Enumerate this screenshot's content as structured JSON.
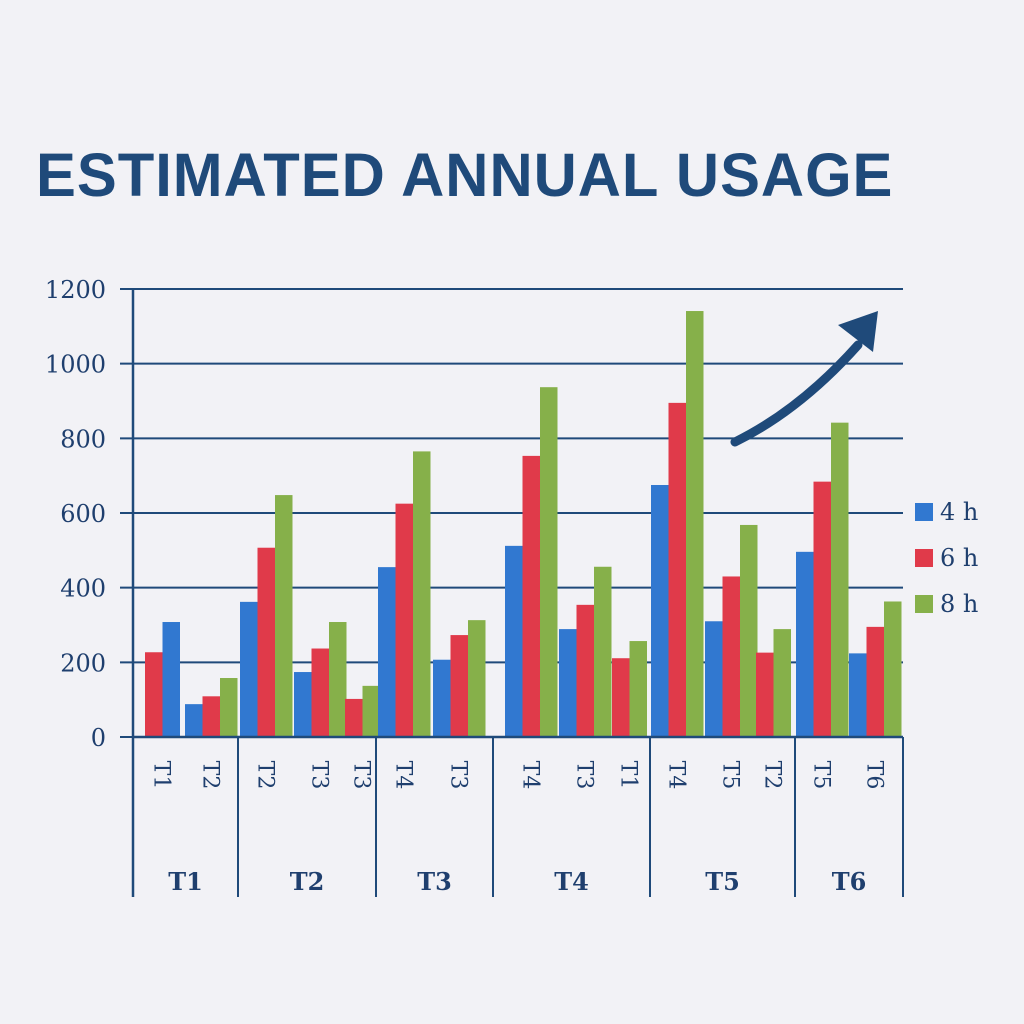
{
  "chart_data": {
    "type": "bar",
    "title": "ESTIMATED ANNUAL USAGE",
    "ylim": [
      0,
      1200
    ],
    "yticks": [
      0,
      200,
      400,
      600,
      800,
      1000,
      1200
    ],
    "grid": true,
    "legend_placement": "right",
    "colors": {
      "4 h": "#3178d0",
      "6 h": "#e03a4a",
      "8 h": "#86b04a",
      "axis": "#1f4a7a"
    },
    "series_names": [
      "4 h",
      "6 h",
      "8 h"
    ],
    "trend_arrow": "up-right",
    "groups": [
      {
        "label": "T1",
        "subgroups": [
          {
            "label": "T1",
            "bars": [
              {
                "series": "6 h",
                "value": 227
              },
              {
                "series": "4 h",
                "value": 308
              }
            ]
          },
          {
            "label": "T2",
            "bars": [
              {
                "series": "4 h",
                "value": 88
              },
              {
                "series": "6 h",
                "value": 109
              },
              {
                "series": "8 h",
                "value": 158
              }
            ]
          }
        ]
      },
      {
        "label": "T2",
        "subgroups": [
          {
            "label": "T2",
            "bars": [
              {
                "series": "4 h",
                "value": 362
              },
              {
                "series": "6 h",
                "value": 507
              },
              {
                "series": "8 h",
                "value": 648
              }
            ]
          },
          {
            "label": "T3",
            "bars": [
              {
                "series": "4 h",
                "value": 174
              },
              {
                "series": "6 h",
                "value": 237
              },
              {
                "series": "8 h",
                "value": 308
              }
            ]
          },
          {
            "label": "T3",
            "bars": [
              {
                "series": "6 h",
                "value": 102
              },
              {
                "series": "8 h",
                "value": 137
              }
            ]
          }
        ]
      },
      {
        "label": "T3",
        "subgroups": [
          {
            "label": "T4",
            "bars": [
              {
                "series": "4 h",
                "value": 455
              },
              {
                "series": "6 h",
                "value": 625
              },
              {
                "series": "8 h",
                "value": 765
              }
            ]
          },
          {
            "label": "T3",
            "bars": [
              {
                "series": "4 h",
                "value": 207
              },
              {
                "series": "6 h",
                "value": 273
              },
              {
                "series": "8 h",
                "value": 313
              }
            ]
          }
        ]
      },
      {
        "label": "T4",
        "subgroups": [
          {
            "label": "T4",
            "bars": [
              {
                "series": "4 h",
                "value": 512
              },
              {
                "series": "6 h",
                "value": 753
              },
              {
                "series": "8 h",
                "value": 937
              }
            ]
          },
          {
            "label": "T3",
            "bars": [
              {
                "series": "4 h",
                "value": 289
              },
              {
                "series": "6 h",
                "value": 354
              },
              {
                "series": "8 h",
                "value": 456
              }
            ]
          },
          {
            "label": "T1",
            "bars": [
              {
                "series": "6 h",
                "value": 211
              },
              {
                "series": "8 h",
                "value": 257
              }
            ]
          }
        ]
      },
      {
        "label": "T5",
        "subgroups": [
          {
            "label": "T4",
            "bars": [
              {
                "series": "4 h",
                "value": 675
              },
              {
                "series": "6 h",
                "value": 895
              },
              {
                "series": "8 h",
                "value": 1141
              }
            ]
          },
          {
            "label": "T5",
            "bars": [
              {
                "series": "4 h",
                "value": 310
              },
              {
                "series": "6 h",
                "value": 430
              },
              {
                "series": "8 h",
                "value": 568
              }
            ]
          },
          {
            "label": "T2",
            "bars": [
              {
                "series": "6 h",
                "value": 226
              },
              {
                "series": "8 h",
                "value": 289
              }
            ]
          }
        ]
      },
      {
        "label": "T6",
        "subgroups": [
          {
            "label": "T5",
            "bars": [
              {
                "series": "4 h",
                "value": 496
              },
              {
                "series": "6 h",
                "value": 684
              },
              {
                "series": "8 h",
                "value": 842
              }
            ]
          },
          {
            "label": "T6",
            "bars": [
              {
                "series": "4 h",
                "value": 224
              },
              {
                "series": "6 h",
                "value": 295
              },
              {
                "series": "8 h",
                "value": 363
              }
            ]
          }
        ]
      }
    ]
  }
}
